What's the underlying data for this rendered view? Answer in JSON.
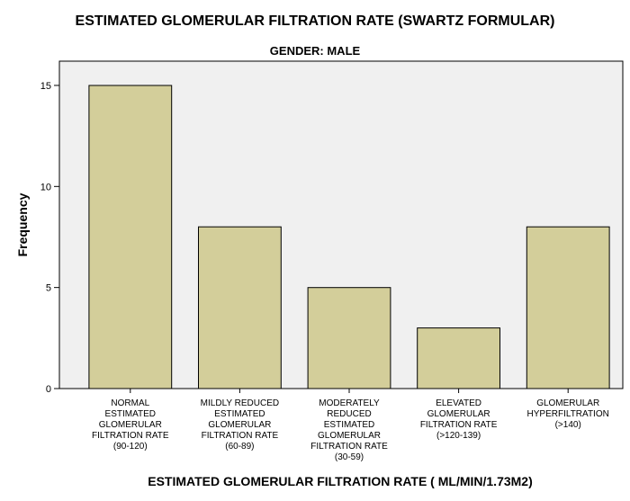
{
  "chart_data": {
    "type": "bar",
    "title": "ESTIMATED GLOMERULAR FILTRATION RATE (SWARTZ FORMULAR)",
    "subtitle": "GENDER: MALE",
    "xlabel": "ESTIMATED GLOMERULAR FILTRATION RATE ( ML/MIN/1.73M2)",
    "ylabel": "Frequency",
    "categories": [
      [
        "NORMAL",
        "ESTIMATED",
        "GLOMERULAR",
        "FILTRATION RATE",
        "(90-120)"
      ],
      [
        "MILDLY REDUCED",
        "ESTIMATED",
        "GLOMERULAR",
        "FILTRATION RATE",
        "(60-89)"
      ],
      [
        "MODERATELY",
        "REDUCED",
        "ESTIMATED",
        "GLOMERULAR",
        "FILTRATION RATE",
        "(30-59)"
      ],
      [
        "ELEVATED",
        "GLOMERULAR",
        "FILTRATION RATE",
        "(>120-139)"
      ],
      [
        "GLOMERULAR",
        "HYPERFILTRATION",
        "(>140)"
      ]
    ],
    "values": [
      15,
      8,
      5,
      3,
      8
    ],
    "ylim": [
      0,
      16.2
    ],
    "yticks": [
      0,
      5,
      10,
      15
    ],
    "bar_color": "#D3CE9A",
    "plot_background": "#F0F0F0",
    "grid": false
  }
}
